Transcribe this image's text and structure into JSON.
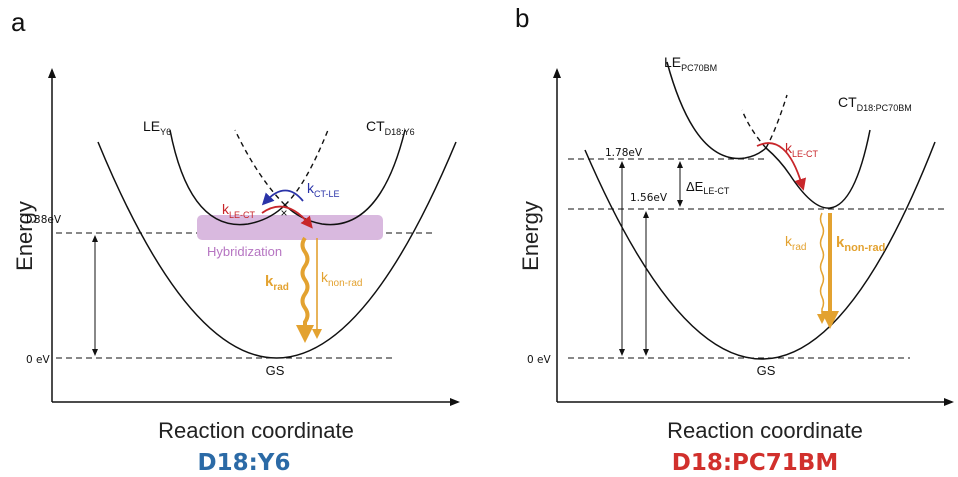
{
  "panel_a": {
    "letter": "a",
    "y_axis_title": "Energy",
    "x_axis_title": "Reaction coordinate",
    "level_high": "1.38eV",
    "level_zero": "0 eV",
    "le_main": "LE",
    "le_sub": "Y6",
    "ct_main": "CT",
    "ct_sub": "D18:Y6",
    "k_ct_le_main": "k",
    "k_ct_le_sub": "CT-LE",
    "k_le_ct_main": "k",
    "k_le_ct_sub": "LE-CT",
    "hybridization": "Hybridization",
    "k_rad_main": "k",
    "k_rad_sub": "rad",
    "k_nonrad_main": "k",
    "k_nonrad_sub": "non-rad",
    "gs": "GS",
    "caption": "D18:Y6",
    "caption_color": "#2b6aa6"
  },
  "panel_b": {
    "letter": "b",
    "y_axis_title": "Energy",
    "x_axis_title": "Reaction coordinate",
    "level_top": "1.78eV",
    "level_mid": "1.56eV",
    "level_zero": "0 eV",
    "le_main": "LE",
    "le_sub": "PC70BM",
    "ct_main": "CT",
    "ct_sub": "D18:PC70BM",
    "k_le_ct_main": "k",
    "k_le_ct_sub": "LE-CT",
    "delta_main": "ΔE",
    "delta_sub": "LE-CT",
    "k_rad_main": "k",
    "k_rad_sub": "rad",
    "k_nonrad_main": "k",
    "k_nonrad_sub": "non-rad",
    "gs": "GS",
    "caption": "D18:PC71BM",
    "caption_color": "#d1302c"
  },
  "colors": {
    "orange": "#e3a230",
    "red": "#c8262a",
    "blue": "#2a33a8",
    "hybridization_fill": "#d9b9df",
    "hybridization_text": "#b675c2"
  }
}
